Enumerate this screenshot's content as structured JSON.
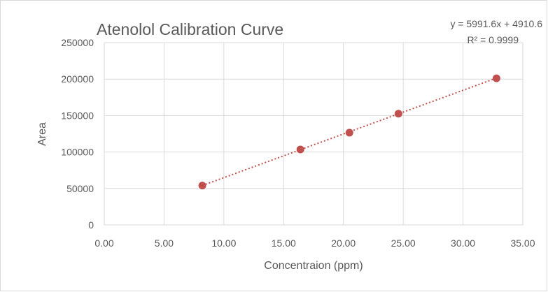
{
  "chart_data": {
    "type": "scatter",
    "title": "Atenolol Calibration Curve",
    "xlabel": "Concentraion (ppm)",
    "ylabel": "Area",
    "xlim": [
      0,
      35
    ],
    "ylim": [
      0,
      250000
    ],
    "x_ticks": [
      "0.00",
      "5.00",
      "10.00",
      "15.00",
      "20.00",
      "25.00",
      "30.00",
      "35.00"
    ],
    "y_ticks": [
      "0",
      "50000",
      "100000",
      "150000",
      "200000",
      "250000"
    ],
    "grid": true,
    "series": [
      {
        "name": "Area",
        "color": "#c0504d",
        "x": [
          8.2,
          16.4,
          20.5,
          24.6,
          32.8
        ],
        "y": [
          54000,
          103500,
          126500,
          152500,
          201000
        ]
      }
    ],
    "trendline": {
      "type": "linear",
      "slope": 5991.6,
      "intercept": 4910.6,
      "style": "dotted",
      "color": "#c0504d",
      "equation": "y = 5991.6x + 4910.6",
      "r_squared": "R² = 0.9999"
    }
  }
}
